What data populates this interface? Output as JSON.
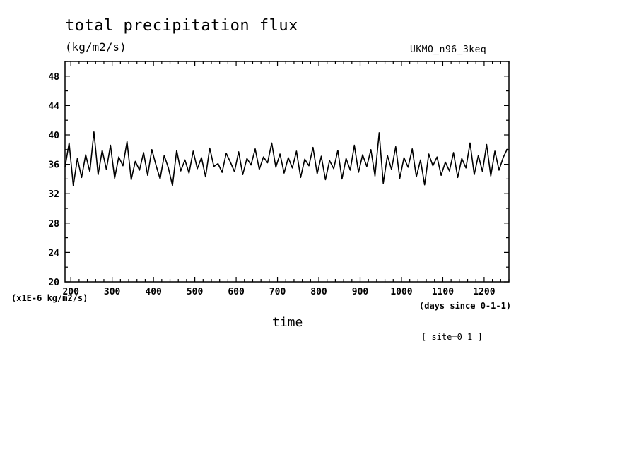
{
  "chart_data": {
    "type": "line",
    "title": "total precipitation flux",
    "units_label": "(kg/m2/s)",
    "model_label": "UKMO_n96_3keq",
    "scale_label": "(x1E-6 kg/m2/s)",
    "xlabel": "time",
    "x_units_label": "(days since 0-1-1)",
    "site_label": "[ site=0 1 ]",
    "xlim": [
      186,
      1260
    ],
    "ylim": [
      20,
      50
    ],
    "xticks": [
      200,
      300,
      400,
      500,
      600,
      700,
      800,
      900,
      1000,
      1100,
      1200
    ],
    "yticks": [
      20,
      24,
      28,
      32,
      36,
      40,
      44,
      48
    ],
    "grid": false,
    "series": [
      {
        "color": "#000000",
        "x": [
          186,
          196,
          206,
          216,
          226,
          236,
          246,
          256,
          266,
          276,
          286,
          296,
          306,
          316,
          326,
          336,
          346,
          356,
          366,
          376,
          386,
          396,
          406,
          416,
          426,
          436,
          446,
          456,
          466,
          476,
          486,
          496,
          506,
          516,
          526,
          536,
          546,
          556,
          566,
          576,
          586,
          596,
          606,
          616,
          626,
          636,
          646,
          656,
          666,
          676,
          686,
          696,
          706,
          716,
          726,
          736,
          746,
          756,
          766,
          776,
          786,
          796,
          806,
          816,
          826,
          836,
          846,
          856,
          866,
          876,
          886,
          896,
          906,
          916,
          926,
          936,
          946,
          956,
          966,
          976,
          986,
          996,
          1006,
          1016,
          1026,
          1036,
          1046,
          1056,
          1066,
          1076,
          1086,
          1096,
          1106,
          1116,
          1126,
          1136,
          1146,
          1156,
          1166,
          1176,
          1186,
          1196,
          1206,
          1216,
          1226,
          1236,
          1246,
          1256
        ],
        "values": [
          35.6,
          38.9,
          33.1,
          36.8,
          34.2,
          37.3,
          35.0,
          40.4,
          34.6,
          37.9,
          35.3,
          38.6,
          34.1,
          37.0,
          35.8,
          39.1,
          33.9,
          36.4,
          35.2,
          37.6,
          34.5,
          38.0,
          35.9,
          34.0,
          37.2,
          35.5,
          33.1,
          37.9,
          35.1,
          36.6,
          34.8,
          37.8,
          35.4,
          36.9,
          34.3,
          38.2,
          35.7,
          36.1,
          34.9,
          37.5,
          36.3,
          35.0,
          37.7,
          34.6,
          36.8,
          35.9,
          38.1,
          35.3,
          37.0,
          36.2,
          38.9,
          35.6,
          37.4,
          34.8,
          36.9,
          35.5,
          37.8,
          34.2,
          36.7,
          35.8,
          38.3,
          34.7,
          37.1,
          33.9,
          36.5,
          35.4,
          37.9,
          34.0,
          36.8,
          35.2,
          38.6,
          34.9,
          37.3,
          35.7,
          38.0,
          34.4,
          40.3,
          33.4,
          37.2,
          35.3,
          38.4,
          34.1,
          36.9,
          35.6,
          38.1,
          34.3,
          36.6,
          33.2,
          37.4,
          35.8,
          37.0,
          34.5,
          36.3,
          35.1,
          37.6,
          34.2,
          36.8,
          35.5,
          38.9,
          34.6,
          37.2,
          35.0,
          38.7,
          34.4,
          37.8,
          35.2,
          36.9,
          38.1
        ]
      }
    ]
  }
}
